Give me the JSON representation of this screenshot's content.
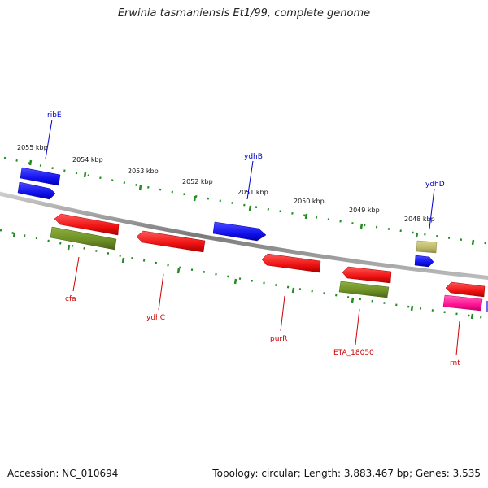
{
  "title": "Erwinia tasmaniensis Et1/99, complete genome",
  "footer": {
    "accession": "Accession: NC_010694",
    "summary": "Topology: circular; Length: 3,883,467 bp; Genes: 3,535"
  },
  "ruler": {
    "labels": [
      "2055 kbp",
      "2054 kbp",
      "2053 kbp",
      "2052 kbp",
      "2051 kbp",
      "2050 kbp",
      "2049 kbp",
      "2048 kbp"
    ]
  },
  "genes_upper": [
    {
      "name": "ribE",
      "color": "#0000cc"
    },
    {
      "name": "ydhB",
      "color": "#0000cc"
    },
    {
      "name": "ydhD",
      "color": "#0000cc"
    }
  ],
  "genes_lower": [
    {
      "name": "cfa",
      "color": "#cc0000"
    },
    {
      "name": "ydhC",
      "color": "#cc0000"
    },
    {
      "name": "purR",
      "color": "#cc0000"
    },
    {
      "name": "ETA_18050",
      "color": "#cc0000"
    },
    {
      "name": "rnt",
      "color": "#cc0000"
    }
  ],
  "colors": {
    "cds_forward": "#1a1aff",
    "cds_reverse": "#ff1a1a",
    "olive": "#6b8e23",
    "khaki": "#bdb76b",
    "pink": "#ff1493",
    "tick": "#228b22",
    "backbone": "#808080"
  }
}
